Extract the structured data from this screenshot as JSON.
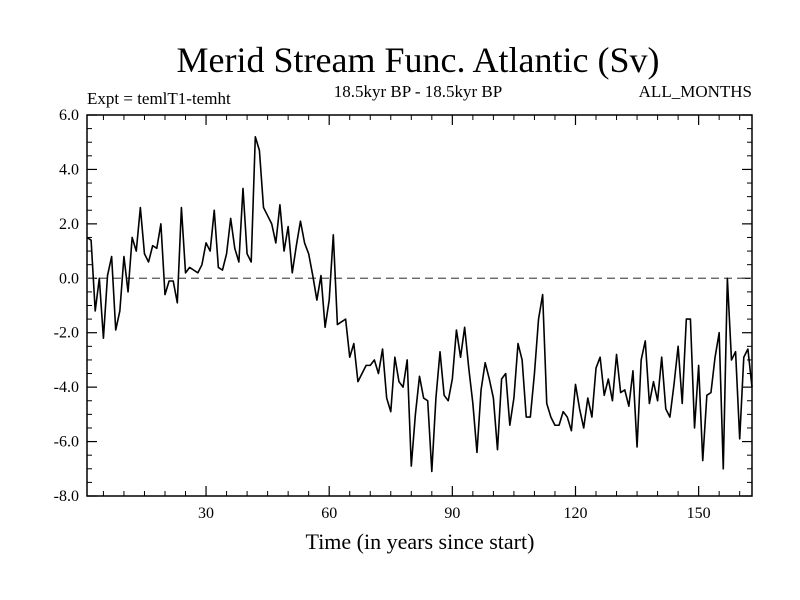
{
  "chart_data": {
    "type": "line",
    "title": "Merid Stream Func. Atlantic (Sv)",
    "subtitle_left": "Expt = temlT1-temht",
    "subtitle_center": "18.5kyr BP - 18.5kyr BP",
    "subtitle_right": "ALL_MONTHS",
    "xlabel": "Time (in years since start)",
    "ylabel": "",
    "xlim": [
      1,
      163
    ],
    "ylim": [
      -8,
      6
    ],
    "x_ticks": [
      30,
      60,
      90,
      120,
      150
    ],
    "y_ticks": [
      6,
      4,
      2,
      0,
      -2,
      -4,
      -6,
      -8
    ],
    "y_tick_labels": [
      "6.0",
      "4.0",
      "2.0",
      "0.0",
      "-2.0",
      "-4.0",
      "-6.0",
      "-8.0"
    ],
    "reference_line": {
      "y": 0,
      "style": "dashed"
    },
    "series": [
      {
        "name": "Merid Stream Func. Atlantic",
        "color": "#000000",
        "x": [
          1,
          2,
          3,
          4,
          5,
          6,
          7,
          8,
          9,
          10,
          11,
          12,
          13,
          14,
          15,
          16,
          17,
          18,
          19,
          20,
          21,
          22,
          23,
          24,
          25,
          26,
          27,
          28,
          29,
          30,
          31,
          32,
          33,
          34,
          35,
          36,
          37,
          38,
          39,
          40,
          41,
          42,
          43,
          44,
          45,
          46,
          47,
          48,
          49,
          50,
          51,
          52,
          53,
          54,
          55,
          56,
          57,
          58,
          59,
          60,
          61,
          62,
          63,
          64,
          65,
          66,
          67,
          68,
          69,
          70,
          71,
          72,
          73,
          74,
          75,
          76,
          77,
          78,
          79,
          80,
          81,
          82,
          83,
          84,
          85,
          86,
          87,
          88,
          89,
          90,
          91,
          92,
          93,
          94,
          95,
          96,
          97,
          98,
          99,
          100,
          101,
          102,
          103,
          104,
          105,
          106,
          107,
          108,
          109,
          110,
          111,
          112,
          113,
          114,
          115,
          116,
          117,
          118,
          119,
          120,
          121,
          122,
          123,
          124,
          125,
          126,
          127,
          128,
          129,
          130,
          131,
          132,
          133,
          134,
          135,
          136,
          137,
          138,
          139,
          140,
          141,
          142,
          143,
          144,
          145,
          146,
          147,
          148,
          149,
          150,
          151,
          152,
          153,
          154,
          155,
          156,
          157,
          158,
          159,
          160,
          161,
          162,
          163
        ],
        "values": [
          1.5,
          1.4,
          -1.2,
          0.0,
          -2.2,
          0.1,
          0.8,
          -1.9,
          -1.2,
          0.8,
          -0.5,
          1.5,
          1.0,
          2.6,
          0.9,
          0.6,
          1.2,
          1.1,
          2.0,
          -0.6,
          -0.1,
          -0.1,
          -0.9,
          2.6,
          0.2,
          0.4,
          0.3,
          0.2,
          0.5,
          1.3,
          1.0,
          2.5,
          0.4,
          0.3,
          0.9,
          2.2,
          1.1,
          0.6,
          3.3,
          0.9,
          0.6,
          5.2,
          4.7,
          2.6,
          2.3,
          2.0,
          1.3,
          2.7,
          1.0,
          1.9,
          0.2,
          1.2,
          2.1,
          1.3,
          0.9,
          0.1,
          -0.8,
          0.1,
          -1.8,
          -0.8,
          1.6,
          -1.7,
          -1.6,
          -1.5,
          -2.9,
          -2.4,
          -3.8,
          -3.5,
          -3.2,
          -3.2,
          -3.0,
          -3.5,
          -2.6,
          -4.4,
          -4.9,
          -2.9,
          -3.8,
          -4.0,
          -3.0,
          -6.9,
          -5.0,
          -3.6,
          -4.4,
          -4.5,
          -7.1,
          -4.4,
          -2.7,
          -4.3,
          -4.5,
          -3.7,
          -1.9,
          -2.9,
          -1.8,
          -3.3,
          -4.6,
          -6.4,
          -4.1,
          -3.1,
          -3.7,
          -4.4,
          -6.3,
          -3.7,
          -3.5,
          -5.4,
          -4.4,
          -2.4,
          -3.0,
          -5.1,
          -5.1,
          -3.5,
          -1.5,
          -0.6,
          -4.6,
          -5.1,
          -5.4,
          -5.4,
          -4.9,
          -5.1,
          -5.6,
          -3.9,
          -4.8,
          -5.5,
          -4.4,
          -5.1,
          -3.3,
          -2.9,
          -4.3,
          -3.7,
          -4.5,
          -2.8,
          -4.2,
          -4.1,
          -4.7,
          -3.4,
          -6.2,
          -3.0,
          -2.3,
          -4.6,
          -3.8,
          -4.5,
          -2.9,
          -4.8,
          -5.1,
          -3.9,
          -2.5,
          -4.6,
          -1.5,
          -1.5,
          -5.5,
          -3.2,
          -6.7,
          -4.3,
          -4.2,
          -2.9,
          -2.0,
          -7.0,
          0.0,
          -3.0,
          -2.7,
          -5.9,
          -2.9,
          -2.6,
          -4.0
        ]
      }
    ]
  }
}
